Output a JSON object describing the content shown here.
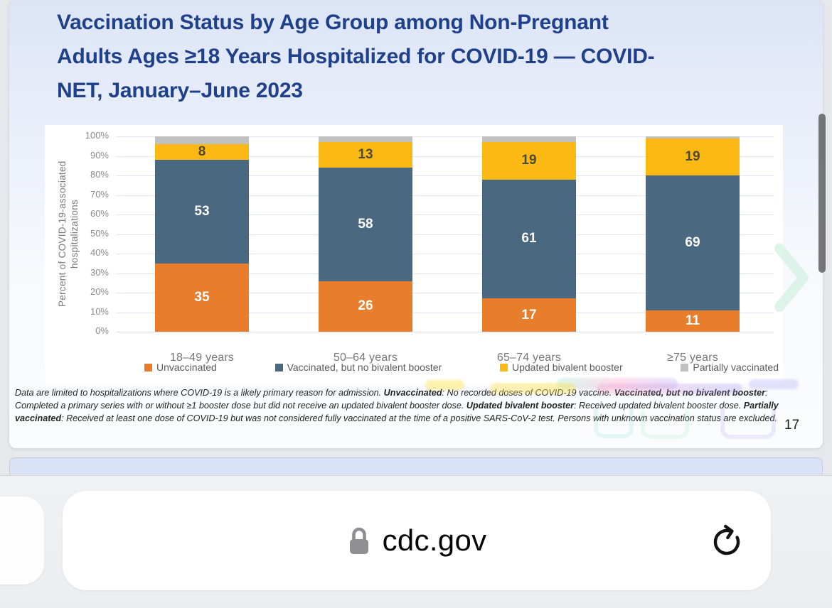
{
  "slide": {
    "title": "Vaccination Status by Age Group among Non-Pregnant Adults Ages ≥18 Years Hospitalized for COVID-19 — COVID-NET, January–June 2023",
    "title_lines": [
      "Vaccination Status by Age Group among Non-Pregnant",
      "Adults Ages ≥18 Years Hospitalized for COVID-19 — COVID-",
      "NET, January–June 2023"
    ],
    "page_number": "17",
    "footnote_segments": [
      {
        "text": "Data are limited to hospitalizations where COVID-19 is a likely primary reason for admission. ",
        "bold": false
      },
      {
        "text": "Unvaccinated",
        "bold": true
      },
      {
        "text": ": No recorded doses of COVID-19 vaccine. ",
        "bold": false
      },
      {
        "text": "Vaccinated, but no bivalent booster",
        "bold": true
      },
      {
        "text": ": Completed a primary series with or without ≥1 booster dose but did not receive an updated bivalent booster dose. ",
        "bold": false
      },
      {
        "text": "Updated bivalent booster",
        "bold": true
      },
      {
        "text": ": Received updated bivalent booster dose. ",
        "bold": false
      },
      {
        "text": "Partially vaccinated",
        "bold": true
      },
      {
        "text": ": Received at least one dose of COVID-19 but was not considered fully vaccinated at the time of a positive SARS-CoV-2 test. Persons with unknown vaccination status are excluded.",
        "bold": false
      }
    ]
  },
  "chart_data": {
    "type": "bar",
    "subtype": "stacked-percent",
    "title": "",
    "ylabel": "Percent of COVID-19-associated hospitalizations",
    "ylabel_lines": [
      "Percent of COVID-19-associated",
      "hospitalizations"
    ],
    "categories": [
      "18–49 years",
      "50–64 years",
      "65–74 years",
      "≥75 years"
    ],
    "series": [
      {
        "name": "Unvaccinated",
        "color": "#E87D2B",
        "label_color": "#ffffff",
        "show_labels": true,
        "values": [
          35,
          26,
          17,
          11
        ]
      },
      {
        "name": "Vaccinated, but no bivalent booster",
        "color": "#4A6880",
        "label_color": "#ffffff",
        "show_labels": true,
        "values": [
          53,
          58,
          61,
          69
        ]
      },
      {
        "name": "Updated bivalent booster",
        "color": "#FDB913",
        "label_color": "#4a4a38",
        "show_labels": true,
        "values": [
          8,
          13,
          19,
          19
        ]
      },
      {
        "name": "Partially vaccinated",
        "color": "#C0C0C0",
        "label_color": "#4a4a38",
        "show_labels": false,
        "values": [
          4,
          3,
          3,
          1
        ]
      }
    ],
    "ylim": [
      0,
      100
    ],
    "ytick_step": 10,
    "ytick_suffix": "%",
    "yticks": [
      "0%",
      "10%",
      "20%",
      "30%",
      "40%",
      "50%",
      "60%",
      "70%",
      "80%",
      "90%",
      "100%"
    ],
    "grid": true,
    "legend_position": "bottom"
  },
  "browser": {
    "url_text": "cdc.gov",
    "icons": {
      "lock": "lock-icon",
      "reload": "reload-icon"
    }
  },
  "colors": {
    "title_blue": "#1f418b",
    "scrollbar": "#5f5f63",
    "chevron_watermark": "#d8f3e6"
  }
}
